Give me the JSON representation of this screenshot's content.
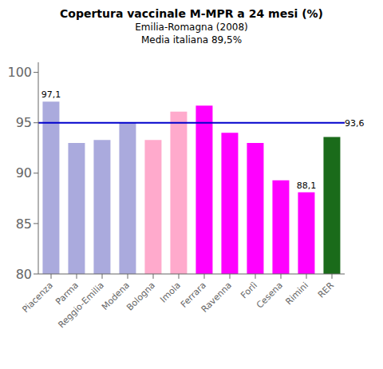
{
  "chart_data": {
    "type": "bar",
    "title": "Copertura vaccinale M-MPR a 24 mesi (%)",
    "subtitle": [
      "Emilia-Romagna (2008)",
      "Media italiana 89,5%"
    ],
    "categories": [
      "Piacenza",
      "Parma",
      "Reggio-Emilia",
      "Modena",
      "Bologna",
      "Imola",
      "Ferrara",
      "Ravenna",
      "Forlì",
      "Cesena",
      "Rimini",
      "RER"
    ],
    "values": [
      97.1,
      93.0,
      93.3,
      95.0,
      93.3,
      96.1,
      96.7,
      94.0,
      93.0,
      89.3,
      88.1,
      93.6
    ],
    "colors": [
      "#aaaadd",
      "#aaaadd",
      "#aaaadd",
      "#aaaadd",
      "#ffaacc",
      "#ffaacc",
      "#ff00ff",
      "#ff00ff",
      "#ff00ff",
      "#ff00ff",
      "#ff00ff",
      "#1a6b1a"
    ],
    "ylim": [
      80,
      101
    ],
    "yticks": [
      80,
      85,
      90,
      95,
      100
    ],
    "grid": false,
    "reference_line": {
      "y": 95,
      "color": "#0000cc"
    },
    "annotations": [
      {
        "category": "Piacenza",
        "label": "97,1",
        "y": 97.1
      },
      {
        "category": "Rimini",
        "label": "88,1",
        "y": 88.1
      },
      {
        "category": "RER",
        "label": "93,6",
        "y": 95
      }
    ]
  }
}
